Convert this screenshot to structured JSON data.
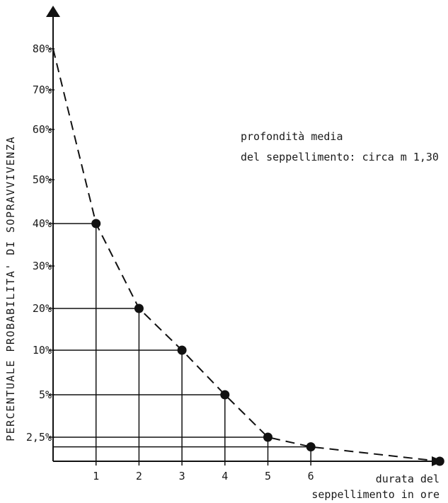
{
  "chart_data": {
    "type": "line",
    "ylabel": "PERCENTUALE PROBABILITA' DI SOPRAVVIVENZA",
    "xlabel_lines": [
      "durata del",
      "seppellimento in ore"
    ],
    "annotation_lines": [
      "profondità media",
      "del seppellimento: circa m 1,30"
    ],
    "y_ticks": [
      "80%",
      "70%",
      "60%",
      "50%",
      "40%",
      "30%",
      "20%",
      "10%",
      "5%",
      "2,5%"
    ],
    "x_ticks": [
      "1",
      "2",
      "3",
      "4",
      "5",
      "6"
    ],
    "x": [
      0,
      1,
      2,
      3,
      4,
      5,
      6,
      9
    ],
    "y": [
      80,
      40,
      20,
      10,
      5,
      2.5,
      1.5,
      0
    ],
    "marked_points_x": [
      1,
      2,
      3,
      4,
      5,
      6,
      9
    ],
    "guide_lines_x": [
      1,
      2,
      3,
      4,
      5,
      6
    ],
    "line_style": "dashed",
    "marker": "filled-circle",
    "y_scale": "non-linear (probability)"
  }
}
